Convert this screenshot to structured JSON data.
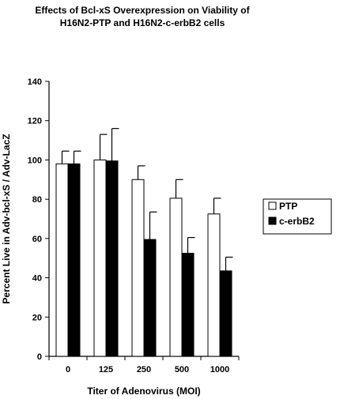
{
  "chart_data": {
    "type": "bar",
    "title_lines": [
      "Effects of Bcl-xS Overexpression on Viability of",
      "H16N2-PTP and H16N2-c-erbB2 cells"
    ],
    "xlabel": "Titer of Adenovirus (MOI)",
    "ylabel": "Percent Live in Adv-bcl-xS / Adv-LacZ",
    "categories": [
      "0",
      "125",
      "250",
      "500",
      "1000"
    ],
    "ylim": [
      0,
      140
    ],
    "yticks": [
      0,
      20,
      40,
      60,
      80,
      100,
      120,
      140
    ],
    "grid": false,
    "legend_position": "right",
    "series": [
      {
        "name": "PTP",
        "color": "#ffffff",
        "values": [
          98,
          100,
          90,
          80.5,
          72.5
        ],
        "errors": [
          6.5,
          13,
          7,
          9.5,
          8
        ]
      },
      {
        "name": "c-erbB2",
        "color": "#000000",
        "values": [
          98,
          99.5,
          59.5,
          52.5,
          43.5
        ],
        "errors": [
          6.5,
          16.5,
          14,
          8,
          7
        ]
      }
    ]
  }
}
